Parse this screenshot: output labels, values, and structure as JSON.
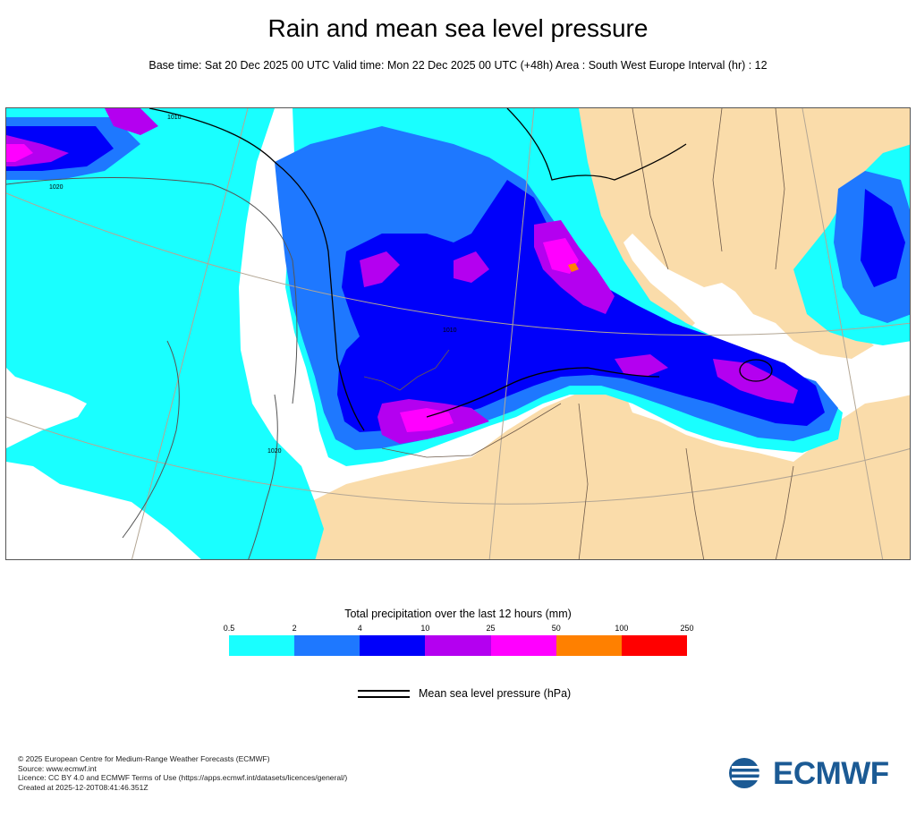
{
  "header": {
    "title": "Rain and mean sea level pressure",
    "subtitle": "Base time: Sat 20 Dec 2025 00 UTC Valid time: Mon 22 Dec 2025 00 UTC (+48h) Area : South West Europe Interval (hr) : 12"
  },
  "map": {
    "isobar_labels": [
      "1010",
      "1020",
      "1010",
      "1020"
    ],
    "colors": {
      "land": "#fadcaa",
      "sea": "#ffffff",
      "border": "#6e5a4a",
      "isobar": "#000000",
      "graticule": "#b3a694"
    }
  },
  "legend": {
    "title": "Total precipitation over the last 12 hours (mm)",
    "ticks": [
      "0.5",
      "2",
      "4",
      "10",
      "25",
      "50",
      "100",
      "250"
    ],
    "colors": [
      "#19ffff",
      "#1e78ff",
      "#0000fa",
      "#b400f0",
      "#ff00ff",
      "#ff8000",
      "#ff0000"
    ],
    "msl_label": "Mean sea level pressure (hPa)"
  },
  "footer": {
    "lines": [
      "© 2025 European Centre for Medium-Range Weather Forecasts (ECMWF)",
      "Source: www.ecmwf.int",
      "Licence: CC BY 4.0 and ECMWF Terms of Use (https://apps.ecmwf.int/datasets/licences/general/)",
      "Created at 2025-12-20T08:41:46.351Z"
    ]
  },
  "logo": {
    "text": "ECMWF",
    "color": "#1b5a94"
  }
}
